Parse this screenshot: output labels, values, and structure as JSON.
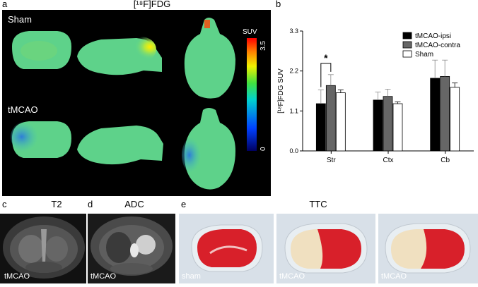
{
  "panel_a": {
    "label": "a",
    "title": "[¹⁸F]FDG",
    "row1_label": "Sham",
    "row2_label": "tMCAO",
    "colorbar": {
      "title": "SUV",
      "max_label": "3.5",
      "min_label": "0"
    }
  },
  "panel_b": {
    "label": "b",
    "chart_data": {
      "type": "bar",
      "categories": [
        "Str",
        "Ctx",
        "Cb"
      ],
      "series": [
        {
          "name": "tMCAO-ipsi",
          "color": "#000000",
          "values": [
            1.3,
            1.4,
            2.0
          ],
          "errors": [
            0.38,
            0.22,
            0.5
          ]
        },
        {
          "name": "tMCAO-contra",
          "color": "#666666",
          "values": [
            1.8,
            1.5,
            2.05
          ],
          "errors": [
            0.3,
            0.2,
            0.45
          ]
        },
        {
          "name": "Sham",
          "color": "#ffffff",
          "values": [
            1.6,
            1.3,
            1.75
          ],
          "errors": [
            0.08,
            0.05,
            0.12
          ]
        }
      ],
      "ylabel": "[¹⁸F]FDG SUV",
      "ylim": [
        0,
        3.3
      ],
      "yticks": [
        0.0,
        1.1,
        2.2,
        3.3
      ],
      "ytick_labels": [
        "0.0",
        "1.1",
        "2.2",
        "3.3"
      ],
      "significance": {
        "label": "*",
        "category": "Str"
      },
      "legend_position": "top-right"
    }
  },
  "panel_c": {
    "label": "c",
    "title": "T2",
    "caption": "tMCAO"
  },
  "panel_d": {
    "label": "d",
    "title": "ADC",
    "caption": "tMCAO"
  },
  "panel_e": {
    "label": "e",
    "title": "TTC",
    "captions": [
      "sham",
      "tMCAO",
      "tMCAO"
    ]
  }
}
